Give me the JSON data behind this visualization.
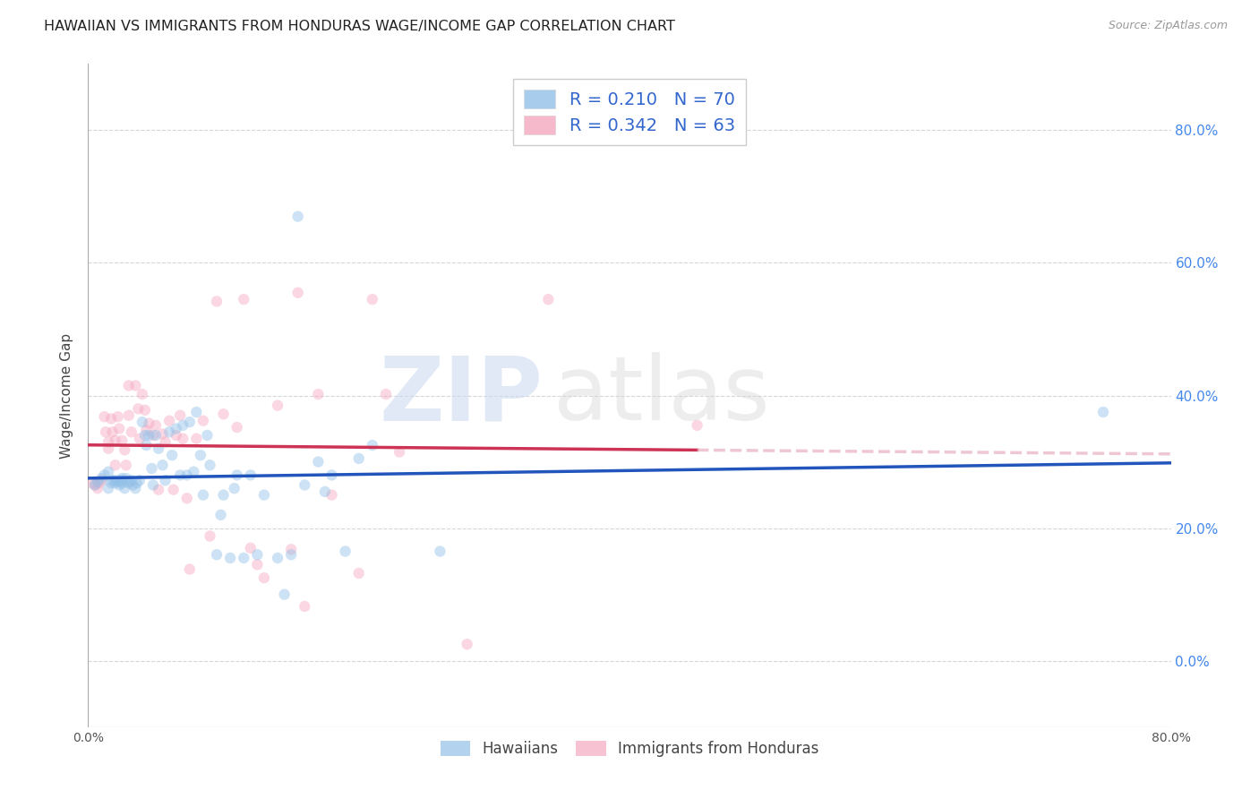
{
  "title": "HAWAIIAN VS IMMIGRANTS FROM HONDURAS WAGE/INCOME GAP CORRELATION CHART",
  "source_text": "Source: ZipAtlas.com",
  "ylabel": "Wage/Income Gap",
  "xlim": [
    0.0,
    0.8
  ],
  "ylim": [
    -0.1,
    0.9
  ],
  "yticks": [
    0.0,
    0.2,
    0.4,
    0.6,
    0.8
  ],
  "ytick_labels": [
    "0.0%",
    "20.0%",
    "40.0%",
    "60.0%",
    "80.0%"
  ],
  "xticks": [
    0.0,
    0.2,
    0.4,
    0.6,
    0.8
  ],
  "xtick_labels": [
    "0.0%",
    "",
    "",
    "",
    "80.0%"
  ],
  "watermark_zip": "ZIP",
  "watermark_atlas": "atlas",
  "blue_color": "#92c0e8",
  "pink_color": "#f4a8c0",
  "blue_line_color": "#2255bb",
  "pink_line_color": "#cc3355",
  "pink_dash_color": "#e8b0c0",
  "legend_label_blue": "R = 0.210   N = 70",
  "legend_label_pink": "R = 0.342   N = 63",
  "legend_text_color": "#3366cc",
  "background_color": "#ffffff",
  "grid_color": "#cccccc",
  "title_fontsize": 11.5,
  "axis_label_fontsize": 11,
  "right_tick_color": "#4488ee",
  "marker_size": 80,
  "marker_alpha": 0.45,
  "line_width": 2.5,
  "hawaiians_x": [
    0.005,
    0.007,
    0.01,
    0.012,
    0.015,
    0.015,
    0.017,
    0.018,
    0.02,
    0.02,
    0.022,
    0.023,
    0.024,
    0.025,
    0.025,
    0.027,
    0.028,
    0.03,
    0.03,
    0.032,
    0.033,
    0.035,
    0.036,
    0.038,
    0.04,
    0.042,
    0.043,
    0.045,
    0.047,
    0.048,
    0.05,
    0.052,
    0.055,
    0.057,
    0.06,
    0.062,
    0.065,
    0.068,
    0.07,
    0.073,
    0.075,
    0.078,
    0.08,
    0.083,
    0.085,
    0.088,
    0.09,
    0.095,
    0.098,
    0.1,
    0.105,
    0.108,
    0.11,
    0.115,
    0.12,
    0.125,
    0.13,
    0.14,
    0.145,
    0.15,
    0.155,
    0.16,
    0.17,
    0.175,
    0.18,
    0.19,
    0.2,
    0.21,
    0.26,
    0.75
  ],
  "hawaiians_y": [
    0.265,
    0.27,
    0.275,
    0.28,
    0.285,
    0.26,
    0.268,
    0.272,
    0.268,
    0.272,
    0.27,
    0.265,
    0.272,
    0.268,
    0.275,
    0.26,
    0.275,
    0.27,
    0.268,
    0.272,
    0.265,
    0.26,
    0.268,
    0.272,
    0.36,
    0.34,
    0.325,
    0.34,
    0.29,
    0.265,
    0.34,
    0.32,
    0.295,
    0.272,
    0.345,
    0.31,
    0.35,
    0.28,
    0.355,
    0.28,
    0.36,
    0.285,
    0.375,
    0.31,
    0.25,
    0.34,
    0.295,
    0.16,
    0.22,
    0.25,
    0.155,
    0.26,
    0.28,
    0.155,
    0.28,
    0.16,
    0.25,
    0.155,
    0.1,
    0.16,
    0.67,
    0.265,
    0.3,
    0.255,
    0.28,
    0.165,
    0.305,
    0.325,
    0.165,
    0.375
  ],
  "honduras_x": [
    0.003,
    0.005,
    0.007,
    0.008,
    0.01,
    0.012,
    0.013,
    0.015,
    0.015,
    0.017,
    0.018,
    0.02,
    0.02,
    0.022,
    0.023,
    0.025,
    0.027,
    0.028,
    0.03,
    0.03,
    0.032,
    0.035,
    0.037,
    0.038,
    0.04,
    0.042,
    0.043,
    0.045,
    0.048,
    0.05,
    0.052,
    0.055,
    0.057,
    0.06,
    0.063,
    0.065,
    0.068,
    0.07,
    0.073,
    0.075,
    0.08,
    0.085,
    0.09,
    0.095,
    0.1,
    0.11,
    0.115,
    0.12,
    0.125,
    0.13,
    0.14,
    0.15,
    0.155,
    0.16,
    0.17,
    0.18,
    0.2,
    0.21,
    0.22,
    0.23,
    0.28,
    0.34,
    0.45
  ],
  "honduras_y": [
    0.268,
    0.265,
    0.26,
    0.268,
    0.272,
    0.368,
    0.345,
    0.33,
    0.32,
    0.365,
    0.345,
    0.332,
    0.295,
    0.368,
    0.35,
    0.332,
    0.318,
    0.295,
    0.415,
    0.37,
    0.345,
    0.415,
    0.38,
    0.335,
    0.402,
    0.378,
    0.348,
    0.358,
    0.34,
    0.355,
    0.258,
    0.342,
    0.33,
    0.362,
    0.258,
    0.34,
    0.37,
    0.335,
    0.245,
    0.138,
    0.335,
    0.362,
    0.188,
    0.542,
    0.372,
    0.352,
    0.545,
    0.17,
    0.145,
    0.125,
    0.385,
    0.168,
    0.555,
    0.082,
    0.402,
    0.25,
    0.132,
    0.545,
    0.402,
    0.315,
    0.025,
    0.545,
    0.355
  ]
}
